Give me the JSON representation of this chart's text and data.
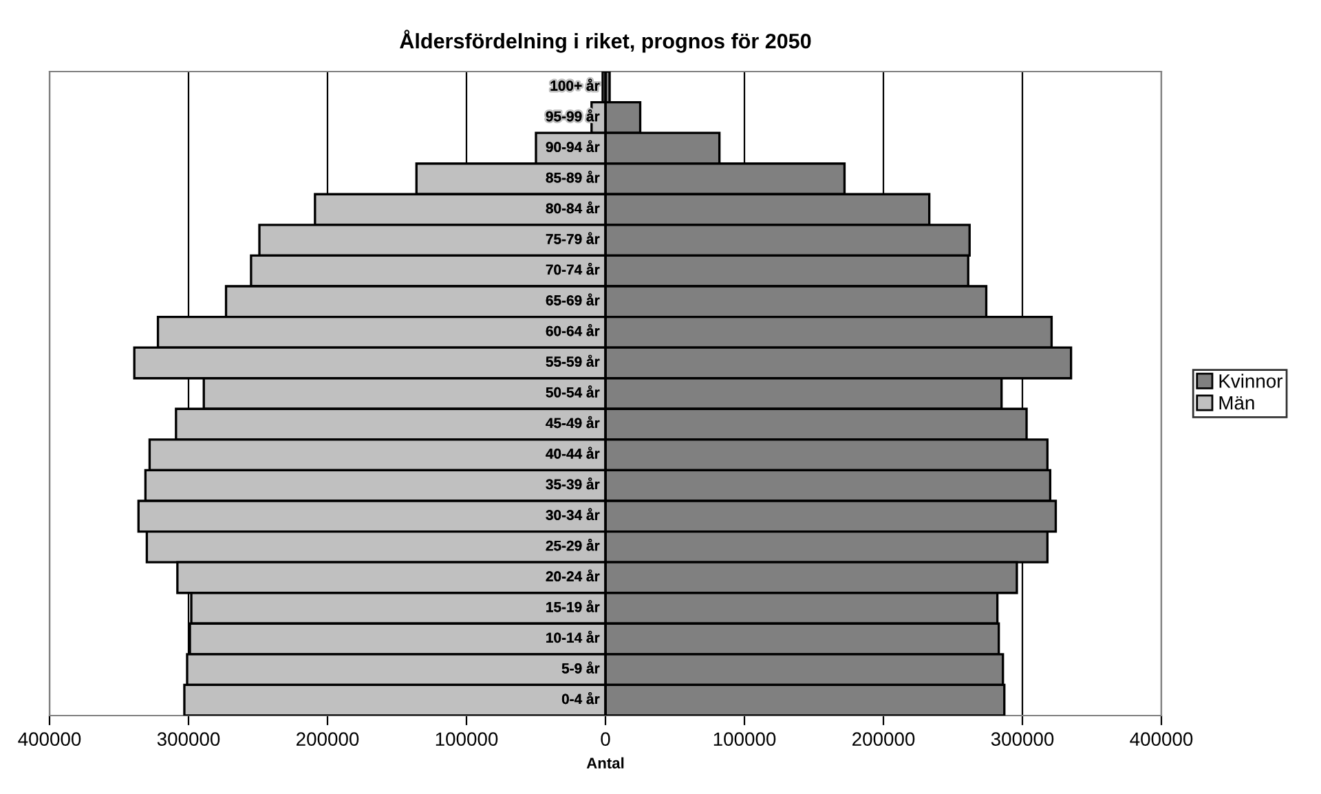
{
  "chart_data": {
    "type": "bar",
    "orientation": "horizontal",
    "title": "Åldersfördelning i riket, prognos för 2050",
    "xlabel": "Antal",
    "categories": [
      "100+ år",
      "95-99 år",
      "90-94 år",
      "85-89 år",
      "80-84 år",
      "75-79 år",
      "70-74 år",
      "65-69 år",
      "60-64 år",
      "55-59 år",
      "50-54 år",
      "45-49 år",
      "40-44 år",
      "35-39 år",
      "30-34 år",
      "25-29 år",
      "20-24 år",
      "15-19 år",
      "10-14 år",
      "5-9 år",
      "0-4 år"
    ],
    "series": [
      {
        "name": "Kvinnor",
        "color": "#808080",
        "values": [
          3000,
          25000,
          82000,
          172000,
          233000,
          262000,
          261000,
          274000,
          321000,
          335000,
          285000,
          303000,
          318000,
          320000,
          324000,
          318000,
          296000,
          282000,
          283000,
          286000,
          287000
        ]
      },
      {
        "name": "Män",
        "color": "#c0c0c0",
        "values": [
          -2000,
          -10000,
          -50000,
          -136000,
          -209000,
          -249000,
          -255000,
          -273000,
          -322000,
          -339000,
          -289000,
          -309000,
          -328000,
          -331000,
          -336000,
          -330000,
          -308000,
          -298000,
          -299000,
          -301000,
          -303000
        ]
      }
    ],
    "xlim": [
      -400000,
      400000
    ],
    "xticks": [
      {
        "value": -400000,
        "label": "400000"
      },
      {
        "value": -300000,
        "label": "300000"
      },
      {
        "value": -200000,
        "label": "200000"
      },
      {
        "value": -100000,
        "label": "100000"
      },
      0,
      100000,
      200000,
      300000,
      400000
    ],
    "grid": "x",
    "legend": "right",
    "stacked": true
  }
}
